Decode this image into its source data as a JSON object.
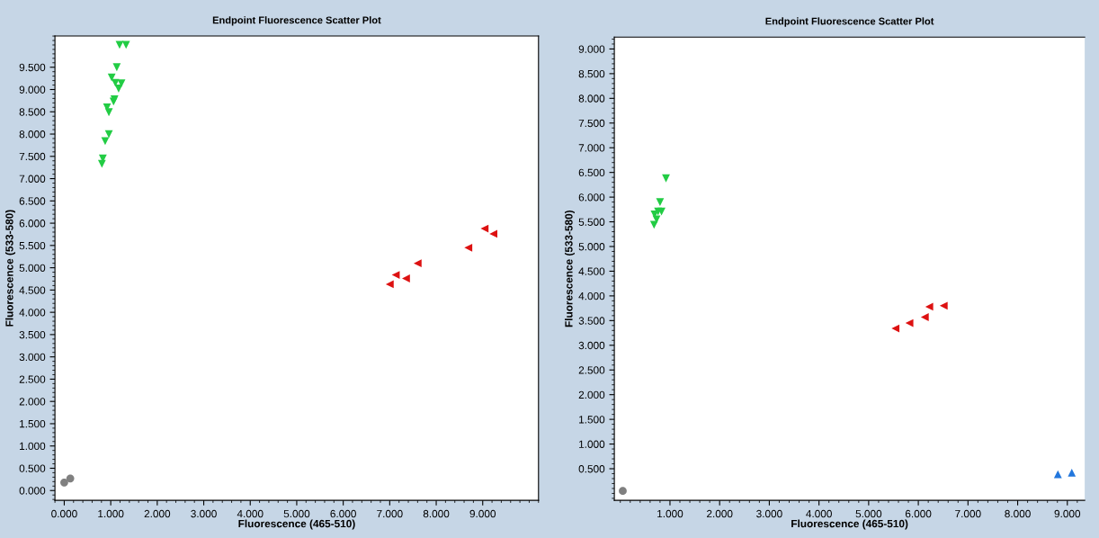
{
  "chart_data": [
    {
      "type": "scatter",
      "title": "Endpoint Fluorescence Scatter Plot",
      "xlabel": "Fluorescence (465-510)",
      "ylabel": "Fluorescence (533-580)",
      "xlim": [
        -0.2,
        10.2
      ],
      "ylim": [
        -0.22,
        10.2
      ],
      "xticks": [
        {
          "value": 0,
          "label": "0.000"
        },
        {
          "value": 1,
          "label": "1.000"
        },
        {
          "value": 2,
          "label": "2.000"
        },
        {
          "value": 3,
          "label": "3.000"
        },
        {
          "value": 4,
          "label": "4.000"
        },
        {
          "value": 5,
          "label": "5.000"
        },
        {
          "value": 6,
          "label": "6.000"
        },
        {
          "value": 7,
          "label": "7.000"
        },
        {
          "value": 8,
          "label": "8.000"
        },
        {
          "value": 9,
          "label": "9.000"
        }
      ],
      "yticks": [
        {
          "value": 0,
          "label": "0.000"
        },
        {
          "value": 0.5,
          "label": "0.500"
        },
        {
          "value": 1,
          "label": "1.000"
        },
        {
          "value": 1.5,
          "label": "1.500"
        },
        {
          "value": 2,
          "label": "2.000"
        },
        {
          "value": 2.5,
          "label": "2.500"
        },
        {
          "value": 3,
          "label": "3.000"
        },
        {
          "value": 3.5,
          "label": "3.500"
        },
        {
          "value": 4,
          "label": "4.000"
        },
        {
          "value": 4.5,
          "label": "4.500"
        },
        {
          "value": 5,
          "label": "5.000"
        },
        {
          "value": 5.5,
          "label": "5.500"
        },
        {
          "value": 6,
          "label": "6.000"
        },
        {
          "value": 6.5,
          "label": "6.500"
        },
        {
          "value": 7,
          "label": "7.000"
        },
        {
          "value": 7.5,
          "label": "7.500"
        },
        {
          "value": 8,
          "label": "8.000"
        },
        {
          "value": 8.5,
          "label": "8.500"
        },
        {
          "value": 9,
          "label": "9.000"
        },
        {
          "value": 9.5,
          "label": "9.500"
        }
      ],
      "grid": false,
      "legend": false,
      "series": [
        {
          "color": "#22cc44",
          "marker": "triangle_down",
          "x": [
            1.19,
            1.33,
            1.13,
            1.02,
            1.1,
            1.23,
            1.17,
            1.08,
            1.06,
            0.92,
            0.96,
            0.96,
            0.88,
            0.83,
            0.81
          ],
          "values": [
            10.0,
            10.0,
            9.5,
            9.27,
            9.15,
            9.14,
            9.02,
            8.78,
            8.73,
            8.6,
            8.49,
            8.0,
            7.84,
            7.45,
            7.33
          ]
        },
        {
          "color": "#dd1111",
          "marker": "triangle_left",
          "x": [
            7.0,
            7.13,
            7.35,
            7.6,
            8.69,
            9.04,
            9.23
          ],
          "values": [
            4.63,
            4.84,
            4.76,
            5.1,
            5.45,
            5.88,
            5.76
          ]
        },
        {
          "color": "#808080",
          "marker": "circle",
          "x": [
            0.0,
            0.13
          ],
          "values": [
            0.18,
            0.27
          ]
        }
      ]
    },
    {
      "type": "scatter",
      "title": "Endpoint Fluorescence Scatter Plot",
      "xlabel": "Fluorescence (465-510)",
      "ylabel": "Fluorescence (533-580)",
      "xlim": [
        -0.12,
        9.35
      ],
      "ylim": [
        -0.14,
        9.24
      ],
      "xticks": [
        {
          "value": 1,
          "label": "1.000"
        },
        {
          "value": 2,
          "label": "2.000"
        },
        {
          "value": 3,
          "label": "3.000"
        },
        {
          "value": 4,
          "label": "4.000"
        },
        {
          "value": 5,
          "label": "5.000"
        },
        {
          "value": 6,
          "label": "6.000"
        },
        {
          "value": 7,
          "label": "7.000"
        },
        {
          "value": 8,
          "label": "8.000"
        },
        {
          "value": 9,
          "label": "9.000"
        }
      ],
      "yticks": [
        {
          "value": 0.5,
          "label": "0.500"
        },
        {
          "value": 1,
          "label": "1.000"
        },
        {
          "value": 1.5,
          "label": "1.500"
        },
        {
          "value": 2,
          "label": "2.000"
        },
        {
          "value": 2.5,
          "label": "2.500"
        },
        {
          "value": 3,
          "label": "3.000"
        },
        {
          "value": 3.5,
          "label": "3.500"
        },
        {
          "value": 4,
          "label": "4.000"
        },
        {
          "value": 4.5,
          "label": "4.500"
        },
        {
          "value": 5,
          "label": "5.000"
        },
        {
          "value": 5.5,
          "label": "5.500"
        },
        {
          "value": 6,
          "label": "6.000"
        },
        {
          "value": 6.5,
          "label": "6.500"
        },
        {
          "value": 7,
          "label": "7.000"
        },
        {
          "value": 7.5,
          "label": "7.500"
        },
        {
          "value": 8,
          "label": "8.000"
        },
        {
          "value": 8.5,
          "label": "8.500"
        },
        {
          "value": 9,
          "label": "9.000"
        }
      ],
      "grid": false,
      "legend": false,
      "series": [
        {
          "color": "#22cc44",
          "marker": "triangle_down",
          "x": [
            0.92,
            0.8,
            0.76,
            0.83,
            0.69,
            0.73,
            0.68
          ],
          "values": [
            6.38,
            5.9,
            5.71,
            5.71,
            5.65,
            5.55,
            5.44
          ]
        },
        {
          "color": "#dd1111",
          "marker": "triangle_left",
          "x": [
            5.54,
            5.82,
            6.13,
            6.22,
            6.51
          ],
          "values": [
            3.34,
            3.45,
            3.57,
            3.78,
            3.8
          ]
        },
        {
          "color": "#808080",
          "marker": "circle",
          "x": [
            0.05
          ],
          "values": [
            0.05
          ]
        },
        {
          "color": "#2277dd",
          "marker": "triangle",
          "x": [
            8.81,
            9.09
          ],
          "values": [
            0.39,
            0.42
          ]
        }
      ]
    }
  ]
}
